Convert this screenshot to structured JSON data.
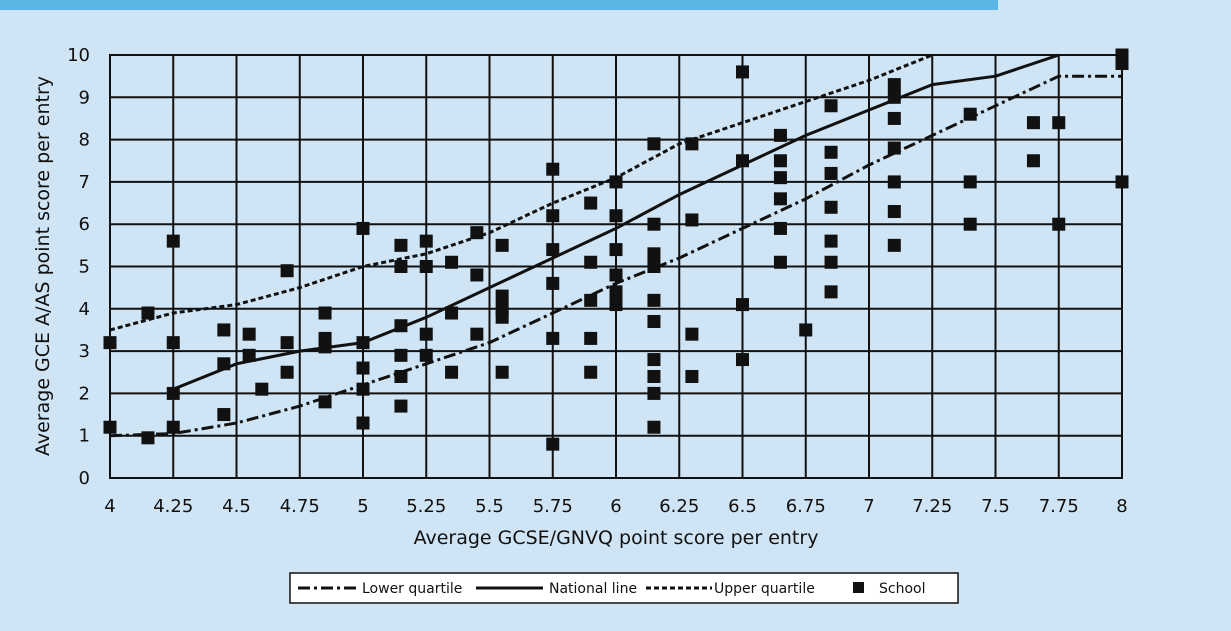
{
  "chart_data": {
    "type": "scatter",
    "xlabel": "Average GCSE/GNVQ point score per entry",
    "ylabel": "Average GCE A/AS point score per entry",
    "xlim": [
      4,
      8
    ],
    "ylim": [
      0,
      10
    ],
    "x_ticks": [
      "4",
      "4.25",
      "4.5",
      "4.75",
      "5",
      "5.25",
      "5.5",
      "5.75",
      "6",
      "6.25",
      "6.5",
      "6.75",
      "7",
      "7.25",
      "7.5",
      "7.75",
      "8"
    ],
    "y_ticks": [
      "0",
      "1",
      "2",
      "3",
      "4",
      "5",
      "6",
      "7",
      "8",
      "9",
      "10"
    ],
    "grid": true,
    "legend_position": "bottom",
    "legend": [
      "Lower quartile",
      "National line",
      "Upper quartile",
      "School"
    ],
    "series": [
      {
        "name": "Lower quartile",
        "type": "line",
        "style": "dash-dot",
        "x": [
          4.0,
          4.25,
          4.5,
          4.75,
          5.0,
          5.25,
          5.5,
          5.75,
          6.0,
          6.25,
          6.5,
          6.75,
          7.0,
          7.25,
          7.5,
          7.75,
          8.0
        ],
        "y": [
          1.0,
          1.05,
          1.3,
          1.7,
          2.2,
          2.7,
          3.2,
          3.9,
          4.6,
          5.2,
          5.9,
          6.6,
          7.4,
          8.1,
          8.8,
          9.5,
          9.5
        ]
      },
      {
        "name": "National line",
        "type": "line",
        "style": "solid",
        "x": [
          4.25,
          4.5,
          4.75,
          5.0,
          5.25,
          5.5,
          5.75,
          6.0,
          6.25,
          6.5,
          6.75,
          7.0,
          7.25,
          7.5,
          7.75
        ],
        "y": [
          2.1,
          2.7,
          3.0,
          3.2,
          3.8,
          4.5,
          5.2,
          5.9,
          6.7,
          7.4,
          8.1,
          8.7,
          9.3,
          9.5,
          10.0
        ]
      },
      {
        "name": "Upper quartile",
        "type": "line",
        "style": "dashed",
        "x": [
          4.0,
          4.25,
          4.5,
          4.75,
          5.0,
          5.25,
          5.5,
          5.75,
          6.0,
          6.25,
          6.5,
          6.75,
          7.0,
          7.25
        ],
        "y": [
          3.5,
          3.9,
          4.1,
          4.5,
          5.0,
          5.3,
          5.8,
          6.5,
          7.1,
          7.9,
          8.4,
          8.9,
          9.4,
          10.0
        ]
      },
      {
        "name": "School",
        "type": "scatter",
        "marker": "square",
        "points": [
          [
            4.0,
            3.2
          ],
          [
            4.0,
            1.2
          ],
          [
            4.15,
            3.9
          ],
          [
            4.15,
            0.95
          ],
          [
            4.25,
            5.6
          ],
          [
            4.25,
            3.2
          ],
          [
            4.25,
            2.0
          ],
          [
            4.25,
            1.2
          ],
          [
            4.45,
            3.5
          ],
          [
            4.45,
            2.7
          ],
          [
            4.45,
            1.5
          ],
          [
            4.55,
            3.4
          ],
          [
            4.55,
            2.9
          ],
          [
            4.6,
            2.1
          ],
          [
            4.7,
            4.9
          ],
          [
            4.7,
            3.2
          ],
          [
            4.7,
            2.5
          ],
          [
            4.85,
            3.9
          ],
          [
            4.85,
            3.3
          ],
          [
            4.85,
            3.1
          ],
          [
            4.85,
            1.8
          ],
          [
            5.0,
            5.9
          ],
          [
            5.0,
            3.2
          ],
          [
            5.0,
            2.6
          ],
          [
            5.0,
            2.1
          ],
          [
            5.0,
            1.3
          ],
          [
            5.15,
            5.5
          ],
          [
            5.15,
            5.0
          ],
          [
            5.15,
            3.6
          ],
          [
            5.15,
            2.9
          ],
          [
            5.15,
            2.4
          ],
          [
            5.15,
            1.7
          ],
          [
            5.25,
            5.6
          ],
          [
            5.25,
            5.0
          ],
          [
            5.25,
            3.4
          ],
          [
            5.25,
            2.9
          ],
          [
            5.35,
            5.1
          ],
          [
            5.35,
            3.9
          ],
          [
            5.35,
            2.5
          ],
          [
            5.45,
            5.8
          ],
          [
            5.45,
            4.8
          ],
          [
            5.45,
            3.4
          ],
          [
            5.55,
            5.5
          ],
          [
            5.55,
            4.3
          ],
          [
            5.55,
            4.0
          ],
          [
            5.55,
            3.8
          ],
          [
            5.55,
            2.5
          ],
          [
            5.75,
            7.3
          ],
          [
            5.75,
            6.2
          ],
          [
            5.75,
            5.4
          ],
          [
            5.75,
            4.6
          ],
          [
            5.75,
            3.3
          ],
          [
            5.75,
            0.8
          ],
          [
            5.9,
            6.5
          ],
          [
            5.9,
            5.1
          ],
          [
            5.9,
            4.2
          ],
          [
            5.9,
            3.3
          ],
          [
            5.9,
            2.5
          ],
          [
            6.0,
            7.0
          ],
          [
            6.0,
            6.2
          ],
          [
            6.0,
            5.4
          ],
          [
            6.0,
            4.8
          ],
          [
            6.0,
            4.4
          ],
          [
            6.0,
            4.1
          ],
          [
            6.15,
            7.9
          ],
          [
            6.15,
            6.0
          ],
          [
            6.15,
            5.3
          ],
          [
            6.15,
            5.0
          ],
          [
            6.15,
            4.2
          ],
          [
            6.15,
            3.7
          ],
          [
            6.15,
            2.8
          ],
          [
            6.15,
            2.4
          ],
          [
            6.15,
            2.0
          ],
          [
            6.15,
            1.2
          ],
          [
            6.3,
            7.9
          ],
          [
            6.3,
            6.1
          ],
          [
            6.3,
            3.4
          ],
          [
            6.3,
            2.4
          ],
          [
            6.5,
            9.6
          ],
          [
            6.5,
            7.5
          ],
          [
            6.5,
            4.1
          ],
          [
            6.5,
            2.8
          ],
          [
            6.65,
            8.1
          ],
          [
            6.65,
            7.5
          ],
          [
            6.65,
            7.1
          ],
          [
            6.65,
            6.6
          ],
          [
            6.65,
            5.9
          ],
          [
            6.65,
            5.1
          ],
          [
            6.75,
            3.5
          ],
          [
            6.85,
            8.8
          ],
          [
            6.85,
            7.7
          ],
          [
            6.85,
            7.2
          ],
          [
            6.85,
            6.4
          ],
          [
            6.85,
            5.6
          ],
          [
            6.85,
            5.1
          ],
          [
            6.85,
            4.4
          ],
          [
            7.1,
            9.3
          ],
          [
            7.1,
            9.0
          ],
          [
            7.1,
            8.5
          ],
          [
            7.1,
            7.8
          ],
          [
            7.1,
            7.0
          ],
          [
            7.1,
            6.3
          ],
          [
            7.1,
            5.5
          ],
          [
            7.4,
            8.6
          ],
          [
            7.4,
            7.0
          ],
          [
            7.4,
            6.0
          ],
          [
            7.65,
            8.4
          ],
          [
            7.65,
            7.5
          ],
          [
            7.75,
            8.4
          ],
          [
            7.75,
            6.0
          ],
          [
            8.0,
            10.0
          ],
          [
            8.0,
            9.8
          ],
          [
            8.0,
            7.0
          ]
        ]
      }
    ]
  }
}
